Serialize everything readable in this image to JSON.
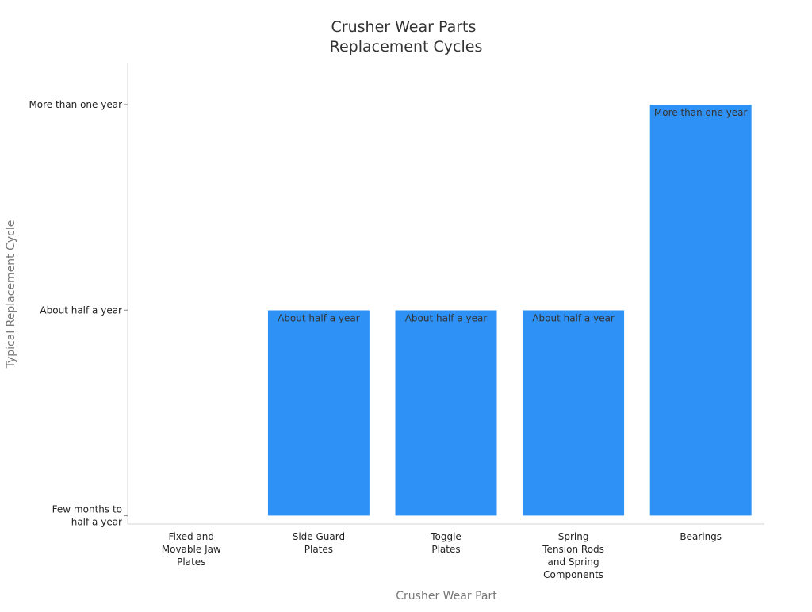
{
  "chart_data": {
    "type": "bar",
    "title": [
      "Crusher Wear Parts",
      "Replacement Cycles"
    ],
    "xlabel": "Crusher Wear Part",
    "ylabel": "Typical Replacement Cycle",
    "categories": [
      [
        "Fixed and",
        "Movable Jaw",
        "Plates"
      ],
      [
        "Side Guard",
        "Plates"
      ],
      [
        "Toggle",
        "Plates"
      ],
      [
        "Spring",
        "Tension Rods",
        "and Spring",
        "Components"
      ],
      [
        "Bearings"
      ]
    ],
    "y_levels": [
      [
        "Few months to",
        "half a year"
      ],
      [
        "About half a year"
      ],
      [
        "More than one year"
      ]
    ],
    "values": [
      0,
      1,
      1,
      1,
      2
    ],
    "data_labels": [
      "",
      "About half a year",
      "About half a year",
      "About half a year",
      "More than one year"
    ],
    "ylim": [
      -0.04,
      2.2
    ],
    "bar_color": "#2e91f5",
    "grid": false,
    "legend": "none"
  }
}
